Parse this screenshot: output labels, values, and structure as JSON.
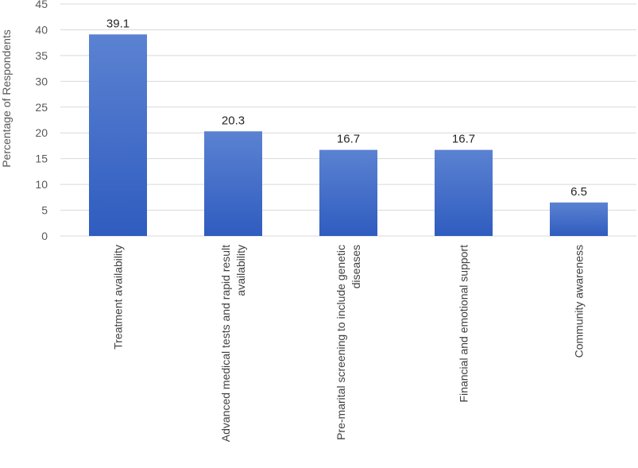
{
  "chart_data": {
    "type": "bar",
    "categories": [
      [
        "Treatment availability"
      ],
      [
        "Advanced medical tests and rapid result",
        "availability"
      ],
      [
        "Pre-marital screening to include genetic",
        "diseases"
      ],
      [
        "Financial and emotional support"
      ],
      [
        "Community awareness"
      ]
    ],
    "values": [
      39.1,
      20.3,
      16.7,
      16.7,
      6.5
    ],
    "data_labels": [
      "39.1",
      "20.3",
      "16.7",
      "16.7",
      "6.5"
    ],
    "ylabel": "Percentage of Respondents",
    "ylim": [
      0,
      45
    ],
    "yticks": [
      0,
      5,
      10,
      15,
      20,
      25,
      30,
      35,
      40,
      45
    ],
    "grid": true,
    "colors": {
      "bar_top": "#5b82d2",
      "bar_bottom": "#2f5cbf",
      "grid": "#d9d9d9"
    }
  }
}
